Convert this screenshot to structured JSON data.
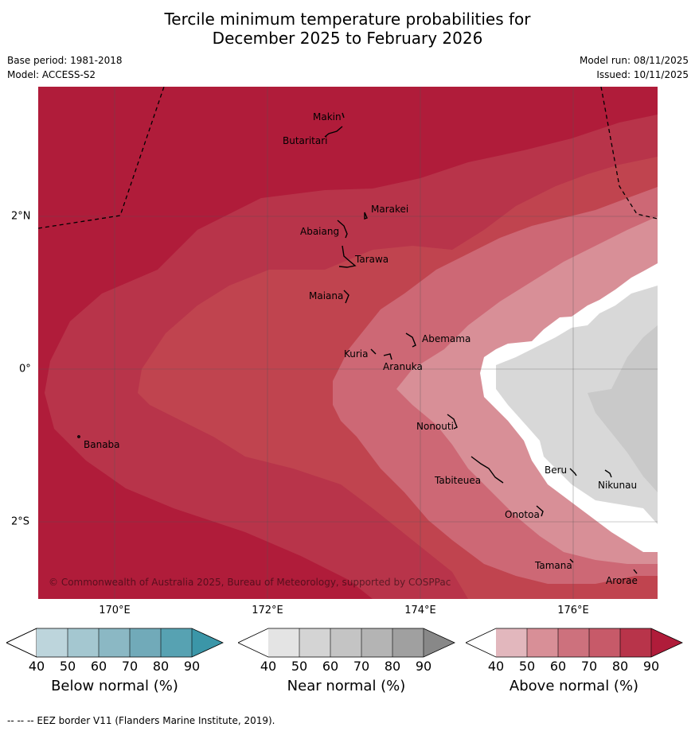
{
  "title_line1": "Tercile minimum temperature probabilities for",
  "title_line2": "December 2025 to February 2026",
  "meta": {
    "base_period": "Base period: 1981-2018",
    "model": "Model: ACCESS-S2",
    "model_run": "Model run: 08/11/2025",
    "issued": "Issued: 10/11/2025"
  },
  "axes": {
    "lon_ticks": [
      "170°E",
      "172°E",
      "174°E",
      "176°E"
    ],
    "lat_ticks": [
      "2°N",
      "0°",
      "2°S"
    ]
  },
  "islands": [
    "Makin",
    "Butaritari",
    "Marakei",
    "Abaiang",
    "Tarawa",
    "Maiana",
    "Abemama",
    "Kuria",
    "Aranuka",
    "Banaba",
    "Nonouti",
    "Beru",
    "Nikunau",
    "Tabiteuea",
    "Onotoa",
    "Tamana",
    "Arorae"
  ],
  "copyright": "© Commonwealth of Australia 2025, Bureau of Meteorology, supported by COSPPac",
  "colorbars": {
    "ticks": [
      "40",
      "50",
      "60",
      "70",
      "80",
      "90"
    ],
    "below": {
      "label": "Below normal (%)",
      "colors": [
        "#bdd5dc",
        "#a4c7d0",
        "#8bb8c4",
        "#71aab9",
        "#57a2b2",
        "#3b96a8"
      ]
    },
    "near": {
      "label": "Near normal (%)",
      "colors": [
        "#e4e4e4",
        "#d4d4d4",
        "#c4c4c4",
        "#b4b4b4",
        "#a0a0a0",
        "#888888"
      ]
    },
    "above": {
      "label": "Above normal (%)",
      "colors": [
        "#e2b7bd",
        "#d88f97",
        "#cd717d",
        "#c75a69",
        "#b8344a",
        "#b01c3a"
      ]
    }
  },
  "footer": "--  --  -- EEZ border V11 (Flanders Marine Institute, 2019)."
}
